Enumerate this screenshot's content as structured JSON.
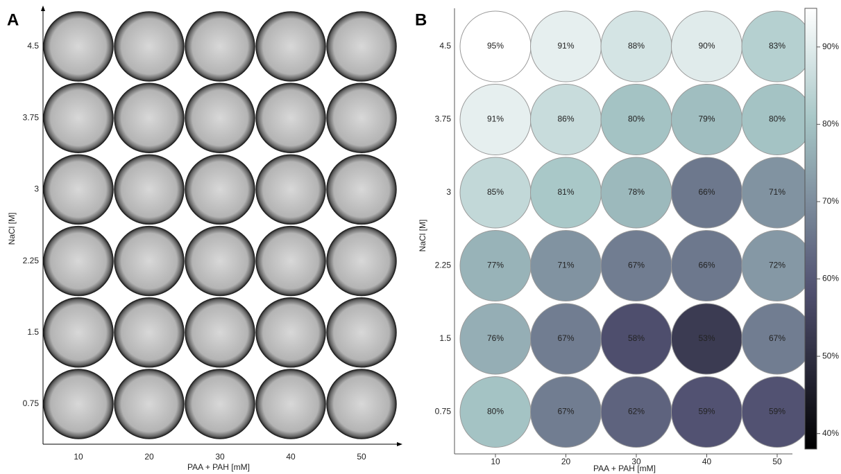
{
  "chart_data": [
    {
      "type": "image-grid",
      "label": "A",
      "x_label": "PAA + PAH [mM]",
      "y_label": "NaCl [M]",
      "categories": [
        "10",
        "20",
        "30",
        "40",
        "50"
      ],
      "row_categories": [
        "4.5",
        "3.75",
        "3",
        "2.25",
        "1.5",
        "0.75"
      ]
    },
    {
      "type": "heatmap",
      "label": "B",
      "x_label": "PAA + PAH [mM]",
      "y_label": "NaCl [M]",
      "categories": [
        "10",
        "20",
        "30",
        "40",
        "50"
      ],
      "row_categories": [
        "4.5",
        "3.75",
        "3",
        "2.25",
        "1.5",
        "0.75"
      ],
      "values": [
        [
          95,
          91,
          88,
          90,
          83
        ],
        [
          91,
          86,
          80,
          79,
          80
        ],
        [
          85,
          81,
          78,
          66,
          71
        ],
        [
          77,
          71,
          67,
          66,
          72
        ],
        [
          76,
          67,
          58,
          53,
          67
        ],
        [
          80,
          67,
          62,
          59,
          59
        ]
      ],
      "value_labels": [
        [
          "95%",
          "91%",
          "88%",
          "90%",
          "83%"
        ],
        [
          "91%",
          "86%",
          "80%",
          "79%",
          "80%"
        ],
        [
          "85%",
          "81%",
          "78%",
          "66%",
          "71%"
        ],
        [
          "77%",
          "71%",
          "67%",
          "66%",
          "72%"
        ],
        [
          "76%",
          "67%",
          "58%",
          "53%",
          "67%"
        ],
        [
          "80%",
          "67%",
          "62%",
          "59%",
          "59%"
        ]
      ],
      "colormap": "bone",
      "clim": [
        38,
        95
      ],
      "cticks": [
        {
          "value": 40,
          "label": "40%"
        },
        {
          "value": 50,
          "label": "50%"
        },
        {
          "value": 60,
          "label": "60%"
        },
        {
          "value": 70,
          "label": "70%"
        },
        {
          "value": 80,
          "label": "80%"
        },
        {
          "value": 90,
          "label": "90%"
        }
      ]
    }
  ]
}
